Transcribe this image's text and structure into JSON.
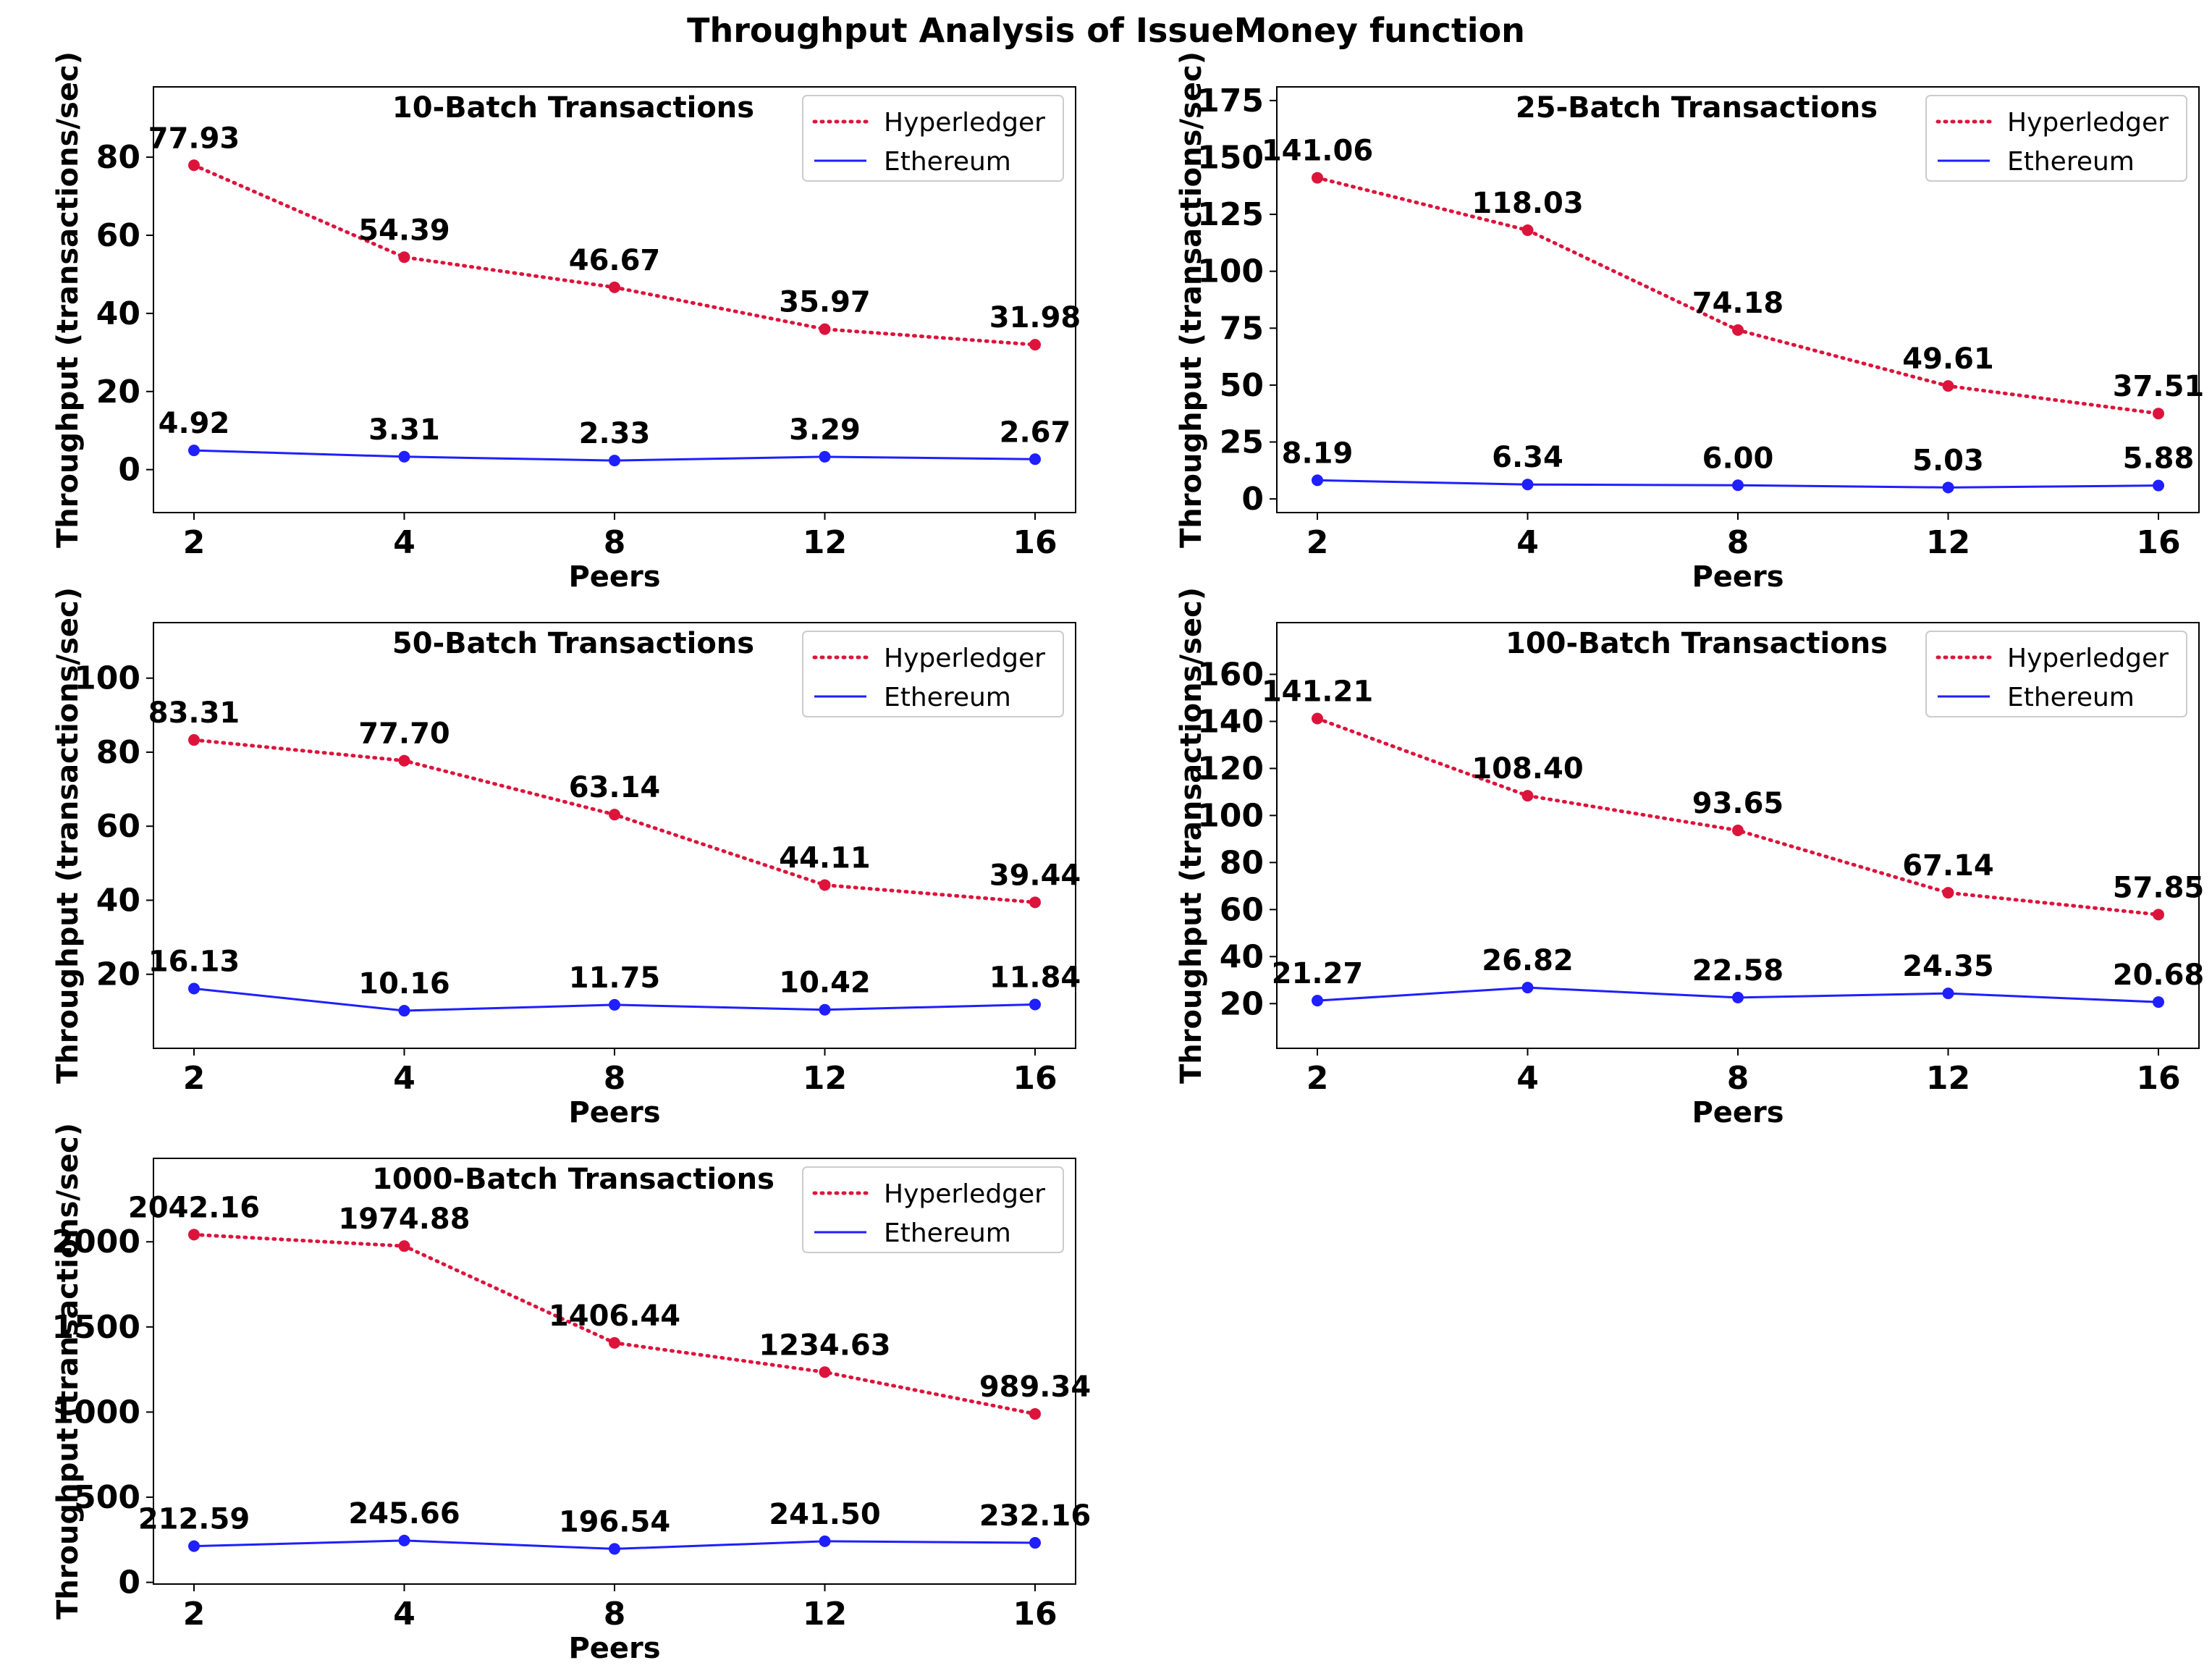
{
  "figure_title": "Throughput Analysis of IssueMoney function",
  "colors": {
    "hyperledger": "#dc143c",
    "ethereum": "#1f1fff",
    "frame": "#000000"
  },
  "legend": {
    "hyperledger": "Hyperledger",
    "ethereum": "Ethereum"
  },
  "chart_data": [
    {
      "type": "line",
      "title": "10-Batch Transactions",
      "xlabel": "Peers",
      "ylabel": "Throughput (transactions/sec)",
      "categories": [
        "2",
        "4",
        "8",
        "12",
        "16"
      ],
      "ylim": [
        -11,
        98
      ],
      "yticks": [
        0,
        20,
        40,
        60,
        80
      ],
      "series": [
        {
          "name": "Hyperledger",
          "style": "dotted",
          "values": [
            77.93,
            54.39,
            46.67,
            35.97,
            31.98
          ],
          "labels": [
            "77.93",
            "54.39",
            "46.67",
            "35.97",
            "31.98"
          ]
        },
        {
          "name": "Ethereum",
          "style": "solid",
          "values": [
            4.92,
            3.31,
            2.33,
            3.29,
            2.67
          ],
          "labels": [
            "4.92",
            "3.31",
            "2.33",
            "3.29",
            "2.67"
          ]
        }
      ]
    },
    {
      "type": "line",
      "title": "25-Batch Transactions",
      "xlabel": "Peers",
      "ylabel": "Throughput (transactions/sec)",
      "categories": [
        "2",
        "4",
        "8",
        "12",
        "16"
      ],
      "ylim": [
        -6,
        181
      ],
      "yticks": [
        0,
        25,
        50,
        75,
        100,
        125,
        150,
        175
      ],
      "series": [
        {
          "name": "Hyperledger",
          "style": "dotted",
          "values": [
            141.06,
            118.03,
            74.18,
            49.61,
            37.51
          ],
          "labels": [
            "141.06",
            "118.03",
            "74.18",
            "49.61",
            "37.51"
          ]
        },
        {
          "name": "Ethereum",
          "style": "solid",
          "values": [
            8.19,
            6.34,
            6.0,
            5.03,
            5.88
          ],
          "labels": [
            "8.19",
            "6.34",
            "6.00",
            "5.03",
            "5.88"
          ]
        }
      ]
    },
    {
      "type": "line",
      "title": "50-Batch Transactions",
      "xlabel": "Peers",
      "ylabel": "Throughput (transactions/sec)",
      "categories": [
        "2",
        "4",
        "8",
        "12",
        "16"
      ],
      "ylim": [
        0,
        115
      ],
      "yticks": [
        20,
        40,
        60,
        80,
        100
      ],
      "series": [
        {
          "name": "Hyperledger",
          "style": "dotted",
          "values": [
            83.31,
            77.7,
            63.14,
            44.11,
            39.44
          ],
          "labels": [
            "83.31",
            "77.70",
            "63.14",
            "44.11",
            "39.44"
          ]
        },
        {
          "name": "Ethereum",
          "style": "solid",
          "values": [
            16.13,
            10.16,
            11.75,
            10.42,
            11.84
          ],
          "labels": [
            "16.13",
            "10.16",
            "11.75",
            "10.42",
            "11.84"
          ]
        }
      ]
    },
    {
      "type": "line",
      "title": "100-Batch Transactions",
      "xlabel": "Peers",
      "ylabel": "Throughput (transactions/sec)",
      "categories": [
        "2",
        "4",
        "8",
        "12",
        "16"
      ],
      "ylim": [
        1,
        182
      ],
      "yticks": [
        20,
        40,
        60,
        80,
        100,
        120,
        140,
        160
      ],
      "series": [
        {
          "name": "Hyperledger",
          "style": "dotted",
          "values": [
            141.21,
            108.4,
            93.65,
            67.14,
            57.85
          ],
          "labels": [
            "141.21",
            "108.40",
            "93.65",
            "67.14",
            "57.85"
          ]
        },
        {
          "name": "Ethereum",
          "style": "solid",
          "values": [
            21.27,
            26.82,
            22.58,
            24.35,
            20.68
          ],
          "labels": [
            "21.27",
            "26.82",
            "22.58",
            "24.35",
            "20.68"
          ]
        }
      ]
    },
    {
      "type": "line",
      "title": "1000-Batch Transactions",
      "xlabel": "Peers",
      "ylabel": "Throughput (transactions/sec)",
      "categories": [
        "2",
        "4",
        "8",
        "12",
        "16"
      ],
      "ylim": [
        -10,
        2490
      ],
      "yticks": [
        0,
        500,
        1000,
        1500,
        2000
      ],
      "series": [
        {
          "name": "Hyperledger",
          "style": "dotted",
          "values": [
            2042.16,
            1974.88,
            1406.44,
            1234.63,
            989.34
          ],
          "labels": [
            "2042.16",
            "1974.88",
            "1406.44",
            "1234.63",
            "989.34"
          ]
        },
        {
          "name": "Ethereum",
          "style": "solid",
          "values": [
            212.59,
            245.66,
            196.54,
            241.5,
            232.16
          ],
          "labels": [
            "212.59",
            "245.66",
            "196.54",
            "241.50",
            "232.16"
          ]
        }
      ]
    }
  ]
}
